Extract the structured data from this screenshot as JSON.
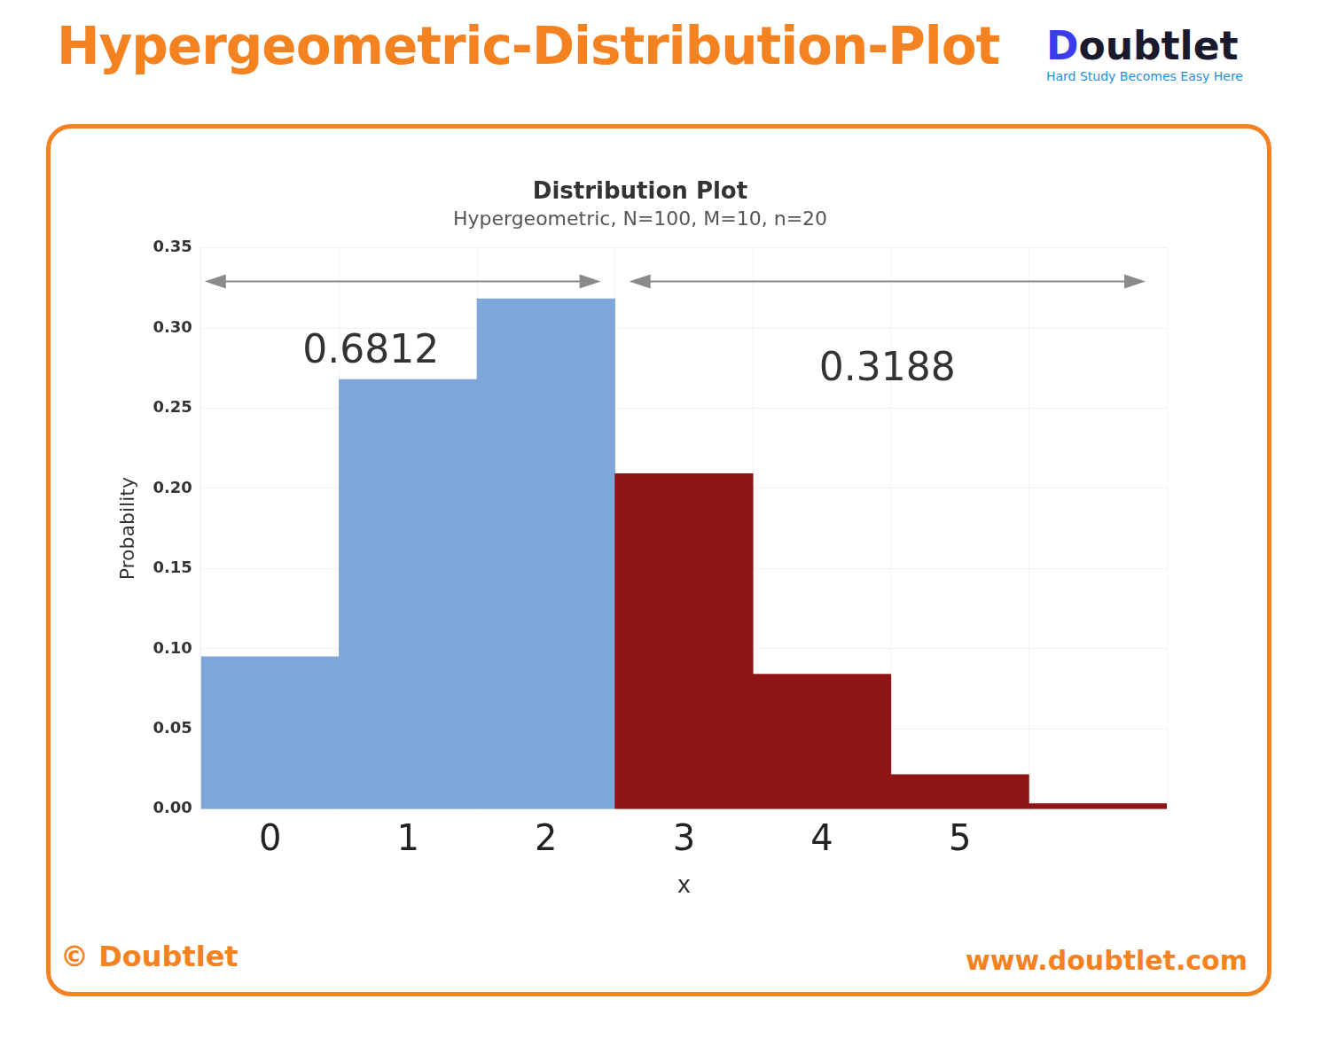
{
  "header": {
    "title": "Hypergeometric-Distribution-Plot",
    "logo": "Doubtlet",
    "tagline": "Hard Study Becomes Easy Here"
  },
  "footer": {
    "copyright": "© Doubtlet",
    "url": "www.doubtlet.com"
  },
  "chart_data": {
    "type": "bar",
    "title": "Distribution Plot",
    "subtitle": "Hypergeometric, N=100, M=10, n=20",
    "x_label": "x",
    "y_label": "Probability",
    "categories": [
      "0",
      "1",
      "2",
      "3",
      "4",
      "5",
      null
    ],
    "values": [
      0.0951,
      0.2679,
      0.3182,
      0.2092,
      0.0841,
      0.0215,
      0.0035
    ],
    "colors": [
      "#7ea6d8",
      "#7ea6d8",
      "#7ea6d8",
      "#8f1414",
      "#8f1414",
      "#8f1414",
      "#8f1414"
    ],
    "ylim": [
      0,
      0.35
    ],
    "yticks": [
      {
        "value": 0,
        "label": "0.00"
      },
      {
        "value": 0.05,
        "label": "0.05"
      },
      {
        "value": 0.1,
        "label": "0.10"
      },
      {
        "value": 0.15,
        "label": "0.15"
      },
      {
        "value": 0.2,
        "label": "0.20"
      },
      {
        "value": 0.25,
        "label": "0.25"
      },
      {
        "value": 0.3,
        "label": "0.30"
      },
      {
        "value": 0.35,
        "label": "0.35"
      }
    ],
    "annotations": [
      "0.6812",
      "0.3188"
    ],
    "grid": true,
    "data_labels": false
  }
}
